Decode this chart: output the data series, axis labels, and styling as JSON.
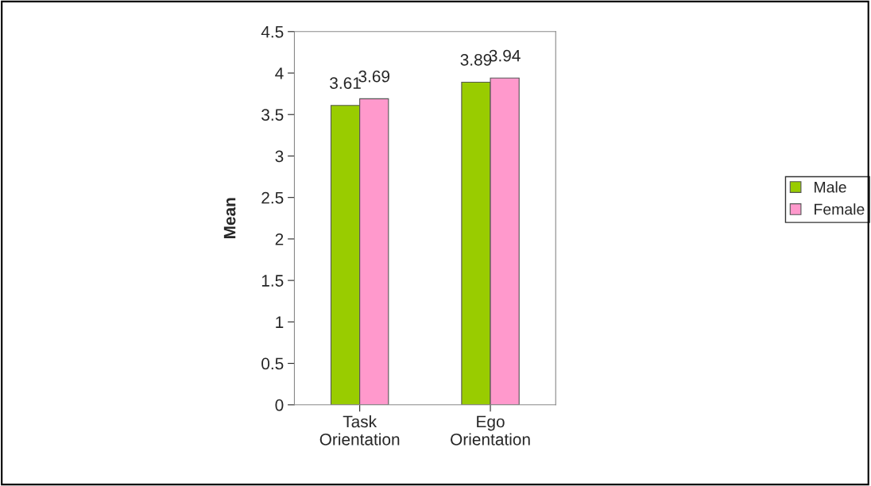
{
  "chart_data": {
    "type": "bar",
    "ylabel": "Mean",
    "categories": [
      "Task\nOrientation",
      "Ego\nOrientation"
    ],
    "series": [
      {
        "name": "Male",
        "color": "#99cc00",
        "values": [
          3.61,
          3.89
        ]
      },
      {
        "name": "Female",
        "color": "#ff99cc",
        "values": [
          3.69,
          3.94
        ]
      }
    ],
    "ylim": [
      0,
      4.5
    ],
    "yticks": [
      0,
      0.5,
      1,
      1.5,
      2,
      2.5,
      3,
      3.5,
      4,
      4.5
    ],
    "data_labels": true,
    "grid": false,
    "legend": "right"
  }
}
